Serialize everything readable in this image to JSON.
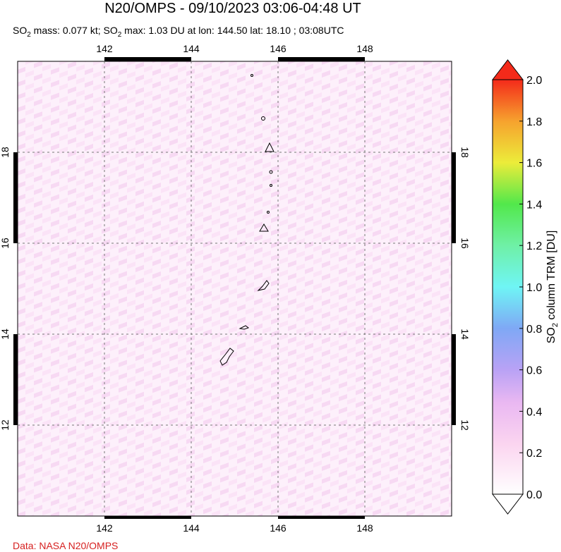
{
  "title": "N20/OMPS - 09/10/2023 03:06-04:48 UT",
  "subtitle": [
    "SO",
    "2",
    " mass: 0.077 kt; SO",
    "2",
    " max: 1.03 DU at lon: 144.50 lat: 18.10 ; 03:08UTC"
  ],
  "map": {
    "lon_range": [
      140,
      150
    ],
    "lat_range": [
      10,
      20
    ],
    "lon_ticks": [
      142,
      144,
      146,
      148
    ],
    "lat_ticks": [
      12,
      14,
      16,
      18
    ]
  },
  "colorbar": {
    "range": [
      0,
      2
    ],
    "ticks": [
      {
        "value": 0,
        "label": "0.0"
      },
      {
        "value": 0.2,
        "label": "0.2"
      },
      {
        "value": 0.4,
        "label": "0.4"
      },
      {
        "value": 0.6,
        "label": "0.6"
      },
      {
        "value": 0.8,
        "label": "0.8"
      },
      {
        "value": 1,
        "label": "1.0"
      },
      {
        "value": 1.2,
        "label": "1.2"
      },
      {
        "value": 1.4,
        "label": "1.4"
      },
      {
        "value": 1.6,
        "label": "1.6"
      },
      {
        "value": 1.8,
        "label": "1.8"
      },
      {
        "value": 2,
        "label": "2.0"
      }
    ],
    "label": [
      "SO",
      "2",
      " column TRM [DU]"
    ]
  },
  "credit": "Data: NASA N20/OMPS"
}
